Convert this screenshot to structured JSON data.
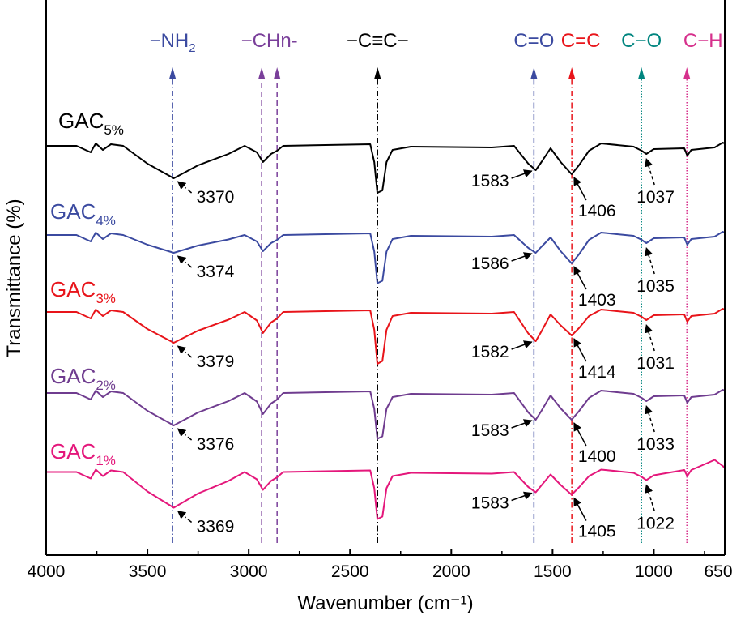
{
  "chart_data": {
    "type": "line",
    "xlabel": "Wavenumber (cm⁻¹)",
    "ylabel": "Transmittance (%)",
    "xlim": [
      4000,
      650
    ],
    "ylim": [
      0,
      137
    ],
    "x_reversed": true,
    "x_ticks": [
      4000,
      3500,
      3000,
      2500,
      2000,
      1500,
      1000,
      650
    ],
    "y_ticks_shown": false,
    "grid": false,
    "x": [
      4000,
      3850,
      3780,
      3755,
      3720,
      3680,
      3620,
      3500,
      3370,
      3250,
      3100,
      3020,
      2960,
      2930,
      2890,
      2860,
      2830,
      2400,
      2380,
      2365,
      2340,
      2320,
      2290,
      2200,
      1800,
      1690,
      1620,
      1583,
      1555,
      1510,
      1460,
      1406,
      1370,
      1320,
      1260,
      1100,
      1060,
      1037,
      1000,
      850,
      835,
      815,
      700,
      660,
      650
    ],
    "series": [
      {
        "name": "GAC",
        "sub": "5%",
        "color": "#000000",
        "values": [
          101,
          101,
          99.4,
          101.6,
          100,
          101.4,
          101,
          96.6,
          93,
          96.2,
          99,
          101,
          99.4,
          97,
          99,
          99.8,
          101,
          101.4,
          97,
          89.4,
          90,
          97,
          100,
          100.8,
          100.6,
          101,
          96.6,
          95,
          97,
          100.4,
          97,
          94,
          96.2,
          99.8,
          101.6,
          100.8,
          99.8,
          99,
          100.2,
          100.4,
          98.6,
          100,
          100.6,
          101.8,
          101.6
        ]
      },
      {
        "name": "GAC",
        "sub": "4%",
        "color": "#3b4aa0",
        "values": [
          79,
          79,
          77.4,
          79.6,
          78,
          79.4,
          79,
          76.6,
          74.6,
          76.4,
          77.9,
          79,
          77.4,
          75,
          77,
          77.8,
          79,
          79.4,
          74.9,
          67.1,
          67.7,
          74.9,
          78,
          78.8,
          78.6,
          79,
          75.8,
          74.6,
          76.1,
          78.4,
          75,
          72,
          74.2,
          77.8,
          79.6,
          78.8,
          77.8,
          77,
          78.2,
          78.4,
          76.6,
          78,
          78.6,
          79.8,
          79.6
        ]
      },
      {
        "name": "GAC",
        "sub": "3%",
        "color": "#e8141a",
        "values": [
          60,
          60,
          58.4,
          60.6,
          59,
          60.4,
          60,
          55.8,
          52.4,
          55.4,
          58.1,
          60,
          57.9,
          54.8,
          57.4,
          58.4,
          60,
          60.4,
          55.6,
          47.2,
          47.9,
          55.6,
          59,
          59.8,
          59.6,
          60,
          54.7,
          52.8,
          55.2,
          59.4,
          56.7,
          54.2,
          56,
          59,
          60.6,
          59.8,
          58.8,
          58,
          59.2,
          59.4,
          57.6,
          59,
          59.6,
          60.8,
          60.6
        ]
      },
      {
        "name": "GAC",
        "sub": "2%",
        "color": "#6f3c8f",
        "values": [
          40,
          40,
          38.4,
          40.6,
          39,
          40.4,
          40,
          35.6,
          32,
          35.2,
          38,
          40,
          37.9,
          34.8,
          37.4,
          38.4,
          40,
          40.4,
          36.1,
          28.7,
          29.3,
          36.1,
          39,
          39.8,
          39.6,
          40,
          35.2,
          33.4,
          35.6,
          39.4,
          36.2,
          33.4,
          35.5,
          38.8,
          40.6,
          39.8,
          38.8,
          38,
          39.2,
          39.4,
          37.6,
          39,
          39.6,
          40.8,
          40.6
        ]
      },
      {
        "name": "GAC",
        "sub": "1%",
        "color": "#e4177b",
        "values": [
          20.5,
          20.5,
          18.9,
          21.1,
          19.5,
          20.9,
          20.5,
          15.7,
          11.7,
          15.2,
          18.3,
          20.5,
          18.7,
          16.1,
          18.3,
          19.2,
          20.5,
          20.9,
          16.5,
          8.9,
          9.5,
          16.5,
          19.5,
          20.3,
          20.1,
          20.5,
          16.8,
          15.5,
          17.2,
          19.9,
          17.3,
          14.9,
          16.7,
          19.5,
          21.1,
          20.3,
          19.3,
          18.5,
          19.7,
          21,
          19.5,
          21,
          23.5,
          22,
          21.5
        ]
      }
    ],
    "bands": [
      {
        "label": "−NH",
        "sub": "2",
        "lines": [
          3376
        ],
        "color": "#3b4aa0",
        "style": "dashdot"
      },
      {
        "label": "−CHn-",
        "sub": "",
        "lines": [
          2936,
          2860
        ],
        "color": "#7a3f9a",
        "style": "dash"
      },
      {
        "label": "−C≡C−",
        "sub": "",
        "lines": [
          2364
        ],
        "color": "#000000",
        "style": "dashdot"
      },
      {
        "label": "C=O",
        "sub": "",
        "lines": [
          1592
        ],
        "color": "#3b4aa0",
        "style": "dashdot"
      },
      {
        "label": "C=C",
        "sub": "",
        "lines": [
          1405
        ],
        "color": "#e8141a",
        "style": "dashdot"
      },
      {
        "label": "C−O",
        "sub": "",
        "lines": [
          1061
        ],
        "color": "#00857f",
        "style": "dot"
      },
      {
        "label": "C−H",
        "sub": "",
        "lines": [
          837
        ],
        "color": "#d6308c",
        "style": "dot"
      }
    ],
    "annotations": [
      {
        "series": 0,
        "text": "3370",
        "type": "NH",
        "at": 3370
      },
      {
        "series": 0,
        "text": "1583",
        "type": "CO",
        "at": 1583
      },
      {
        "series": 0,
        "text": "1406",
        "type": "CC",
        "at": 1406
      },
      {
        "series": 0,
        "text": "1037",
        "type": "COx",
        "at": 1037
      },
      {
        "series": 1,
        "text": "3374",
        "type": "NH",
        "at": 3370
      },
      {
        "series": 1,
        "text": "1586",
        "type": "CO",
        "at": 1583
      },
      {
        "series": 1,
        "text": "1403",
        "type": "CC",
        "at": 1406
      },
      {
        "series": 1,
        "text": "1035",
        "type": "COx",
        "at": 1037
      },
      {
        "series": 2,
        "text": "3379",
        "type": "NH",
        "at": 3370
      },
      {
        "series": 2,
        "text": "1582",
        "type": "CO",
        "at": 1583
      },
      {
        "series": 2,
        "text": "1414",
        "type": "CC",
        "at": 1406
      },
      {
        "series": 2,
        "text": "1031",
        "type": "COx",
        "at": 1037
      },
      {
        "series": 3,
        "text": "3376",
        "type": "NH",
        "at": 3370
      },
      {
        "series": 3,
        "text": "1583",
        "type": "CO",
        "at": 1583
      },
      {
        "series": 3,
        "text": "1400",
        "type": "CC",
        "at": 1406
      },
      {
        "series": 3,
        "text": "1033",
        "type": "COx",
        "at": 1037
      },
      {
        "series": 4,
        "text": "3369",
        "type": "NH",
        "at": 3370
      },
      {
        "series": 4,
        "text": "1583",
        "type": "CO",
        "at": 1583
      },
      {
        "series": 4,
        "text": "1405",
        "type": "CC",
        "at": 1406
      },
      {
        "series": 4,
        "text": "1022",
        "type": "COx",
        "at": 1037
      }
    ]
  }
}
